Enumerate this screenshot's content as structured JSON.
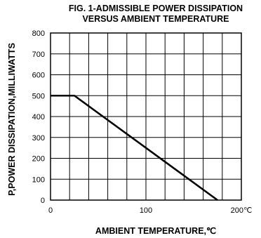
{
  "chart_data": {
    "type": "line",
    "title_line1": "FIG. 1-ADMISSIBLE POWER DISSIPATION",
    "title_line2": "VERSUS AMBIENT TEMPERATURE",
    "xlabel": "AMBIENT TEMPERATURE,℃",
    "ylabel": "P,POWER DISSIPATION,MILLIWATTS",
    "xlim": [
      0,
      200
    ],
    "ylim": [
      0,
      800
    ],
    "x_ticks": [
      0,
      50,
      100,
      150,
      200
    ],
    "y_ticks": [
      0,
      100,
      200,
      300,
      400,
      500,
      600,
      700,
      800
    ],
    "x_tick_labels": [
      "0",
      "",
      "100",
      "",
      "200℃"
    ],
    "y_tick_labels": [
      "0",
      "100",
      "200",
      "300",
      "400",
      "500",
      "600",
      "700",
      "800"
    ],
    "grid": true,
    "series": [
      {
        "x": [
          0,
          25,
          175
        ],
        "y": [
          500,
          500,
          0
        ]
      }
    ]
  }
}
